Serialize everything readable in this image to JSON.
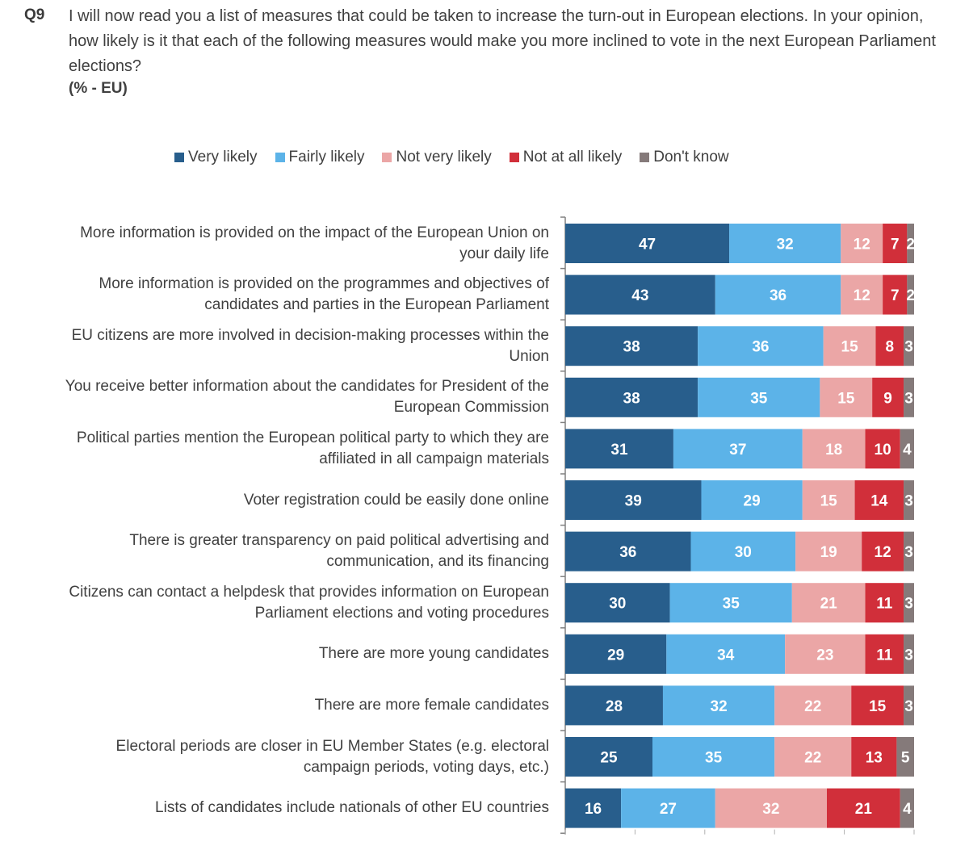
{
  "header": {
    "qnum": "Q9",
    "question": "I will now read you a list of measures that could be taken to increase the turn-out in European elections. In your opinion, how likely is it that each of the following measures would make you more inclined to vote in the next European Parliament elections?",
    "unit": "(% - EU)"
  },
  "chart_data": {
    "type": "bar",
    "orientation": "horizontal",
    "stacked": true,
    "title": "",
    "legend_position": "top",
    "grid": false,
    "xlim": [
      0,
      100
    ],
    "categories": [
      "More information is provided on the impact of the European Union on your daily life",
      "More information is provided on the programmes and objectives of candidates and parties in the European Parliament",
      "EU citizens are more involved in decision-making processes within the Union",
      "You receive better information about the candidates for President of the European Commission",
      "Political parties mention the European political party to which they are affiliated in all campaign materials",
      "Voter registration could be easily done online",
      "There is greater transparency on paid political advertising and communication, and its financing",
      "Citizens can contact a helpdesk that provides information on European Parliament elections and voting procedures",
      "There are more young candidates",
      "There are more female candidates",
      "Electoral periods are closer in EU Member States (e.g. electoral campaign periods, voting days, etc.)",
      "Lists of candidates include nationals of other EU countries"
    ],
    "series": [
      {
        "name": "Very likely",
        "color": "#285E8C",
        "values": [
          47,
          43,
          38,
          38,
          31,
          39,
          36,
          30,
          29,
          28,
          25,
          16
        ]
      },
      {
        "name": "Fairly likely",
        "color": "#5CB3E8",
        "values": [
          32,
          36,
          36,
          35,
          37,
          29,
          30,
          35,
          34,
          32,
          35,
          27
        ]
      },
      {
        "name": "Not very likely",
        "color": "#EBA6A6",
        "values": [
          12,
          12,
          15,
          15,
          18,
          15,
          19,
          21,
          23,
          22,
          22,
          32
        ]
      },
      {
        "name": "Not at all likely",
        "color": "#D12F3A",
        "values": [
          7,
          7,
          8,
          9,
          10,
          14,
          12,
          11,
          11,
          15,
          13,
          21
        ]
      },
      {
        "name": "Don't know",
        "color": "#857A7A",
        "values": [
          2,
          2,
          3,
          3,
          4,
          3,
          3,
          3,
          3,
          3,
          5,
          4
        ]
      }
    ]
  }
}
